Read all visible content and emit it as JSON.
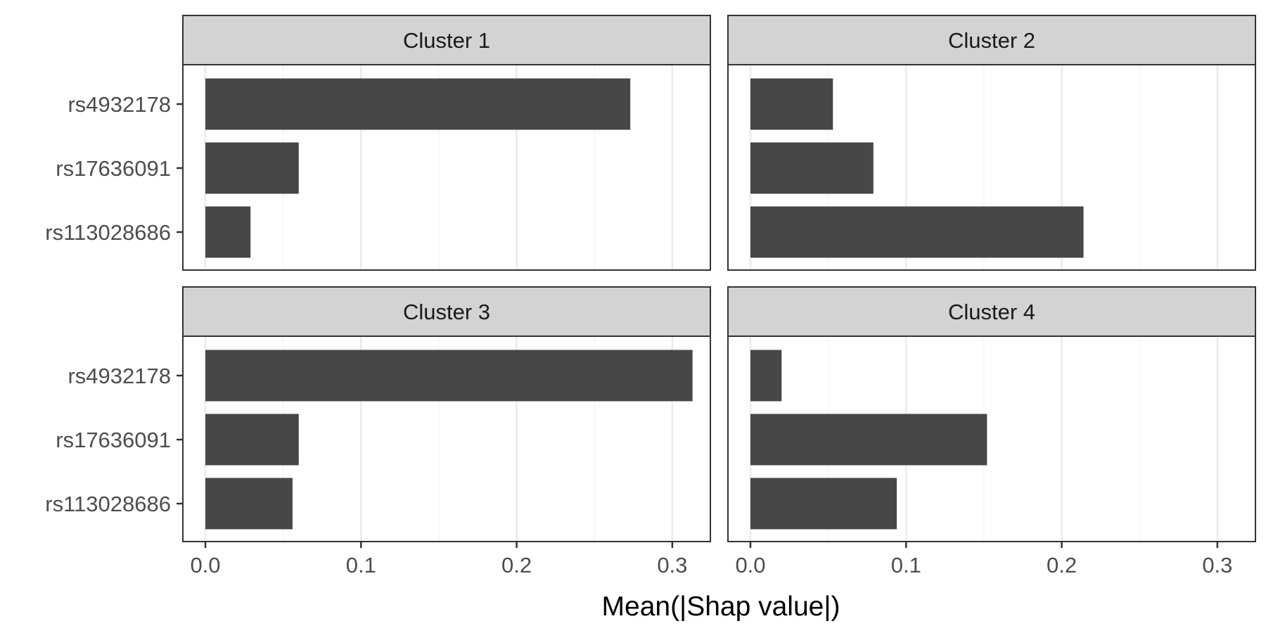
{
  "chart_data": {
    "type": "bar",
    "orientation": "horizontal",
    "layout": "facet-grid-2x2",
    "xlabel": "Mean(|Shap value|)",
    "ylabel": "",
    "xlim": [
      0,
      0.325
    ],
    "x_ticks": [
      0.0,
      0.1,
      0.2,
      0.3
    ],
    "x_tick_labels": [
      "0.0",
      "0.1",
      "0.2",
      "0.3"
    ],
    "categories": [
      "rs4932178",
      "rs17636091",
      "rs113028686"
    ],
    "grid": true,
    "panels": [
      {
        "name": "Cluster 1",
        "values": [
          0.273,
          0.06,
          0.029
        ]
      },
      {
        "name": "Cluster 2",
        "values": [
          0.053,
          0.079,
          0.214
        ]
      },
      {
        "name": "Cluster 3",
        "values": [
          0.313,
          0.06,
          0.056
        ]
      },
      {
        "name": "Cluster 4",
        "values": [
          0.02,
          0.152,
          0.094
        ]
      }
    ],
    "colors": {
      "bar": "#474747",
      "strip_fill": "#d3d3d3",
      "panel_border": "#333333",
      "grid_major": "#ebebeb",
      "grid_minor": "#f4f4f4"
    }
  }
}
